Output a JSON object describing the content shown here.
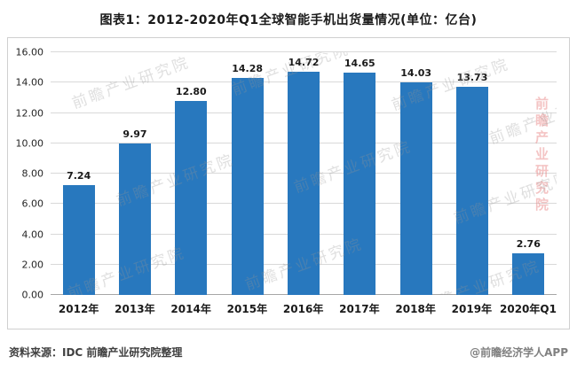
{
  "title": "图表1：2012-2020年Q1全球智能手机出货量情况(单位：亿台)",
  "chart_data": {
    "type": "bar",
    "title": "图表1：2012-2020年Q1全球智能手机出货量情况(单位：亿台)",
    "categories": [
      "2012年",
      "2013年",
      "2014年",
      "2015年",
      "2016年",
      "2017年",
      "2018年",
      "2019年",
      "2020年Q1"
    ],
    "values": [
      7.24,
      9.97,
      12.8,
      14.28,
      14.72,
      14.65,
      14.03,
      13.73,
      2.76
    ],
    "value_labels": [
      "7.24",
      "9.97",
      "12.80",
      "14.28",
      "14.72",
      "14.65",
      "14.03",
      "13.73",
      "2.76"
    ],
    "xlabel": "",
    "ylabel": "",
    "ylim": [
      0,
      16
    ],
    "ytick_step": 2,
    "ytick_labels": [
      "0.00",
      "2.00",
      "4.00",
      "6.00",
      "8.00",
      "10.00",
      "12.00",
      "14.00",
      "16.00"
    ],
    "grid": true,
    "legend": false,
    "bar_color": "#2878BE"
  },
  "colors": {
    "bar": "#2878BE",
    "gridline": "#D9D9D9",
    "axis_line": "#A6A6A6"
  },
  "watermark": {
    "tile_text": "前瞻产业研究院",
    "side_text": "前瞻产业研究院"
  },
  "footer": {
    "source": "资料来源：IDC  前瞻产业研究院整理",
    "credit": "@前瞻经济学人APP"
  }
}
